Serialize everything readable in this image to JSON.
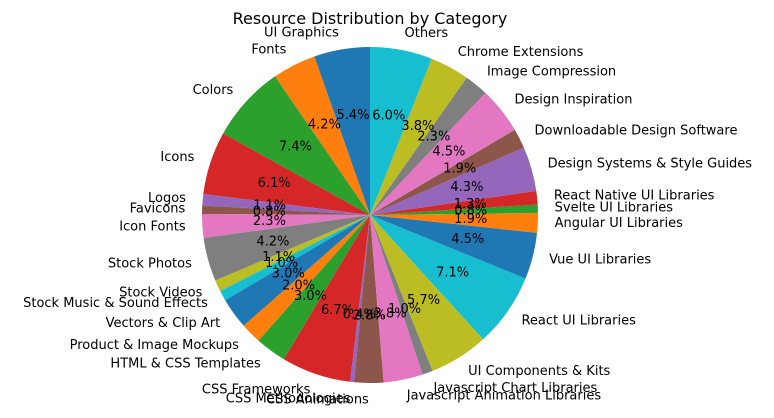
{
  "chart_data": {
    "type": "pie",
    "title": "Resource Distribution by Category",
    "start_angle_deg": 90,
    "direction": "counterclockwise",
    "legend": "none",
    "slices": [
      {
        "label": "UI Graphics",
        "value": 5.4,
        "pct_label": "5.4%",
        "color": "#1f77b4"
      },
      {
        "label": "Fonts",
        "value": 4.2,
        "pct_label": "4.2%",
        "color": "#ff7f0e"
      },
      {
        "label": "Colors",
        "value": 7.4,
        "pct_label": "7.4%",
        "color": "#2ca02c"
      },
      {
        "label": "Icons",
        "value": 6.1,
        "pct_label": "6.1%",
        "color": "#d62728"
      },
      {
        "label": "Logos",
        "value": 1.1,
        "pct_label": "1.1%",
        "color": "#9467bd"
      },
      {
        "label": "Favicons",
        "value": 0.8,
        "pct_label": "0.8%",
        "color": "#8c564b"
      },
      {
        "label": "Icon Fonts",
        "value": 2.3,
        "pct_label": "2.3%",
        "color": "#e377c2"
      },
      {
        "label": "Stock Photos",
        "value": 4.2,
        "pct_label": "4.2%",
        "color": "#7f7f7f"
      },
      {
        "label": "Stock Videos",
        "value": 1.1,
        "pct_label": "1.1%",
        "color": "#bcbd22"
      },
      {
        "label": "Stock Music & Sound Effects",
        "value": 1.0,
        "pct_label": "1.0%",
        "color": "#17becf"
      },
      {
        "label": "Vectors & Clip Art",
        "value": 3.0,
        "pct_label": "3.0%",
        "color": "#1f77b4"
      },
      {
        "label": "Product & Image Mockups",
        "value": 2.0,
        "pct_label": "2.0%",
        "color": "#ff7f0e"
      },
      {
        "label": "HTML & CSS Templates",
        "value": 3.0,
        "pct_label": "3.0%",
        "color": "#2ca02c"
      },
      {
        "label": "CSS Frameworks",
        "value": 6.7,
        "pct_label": "6.7%",
        "color": "#d62728"
      },
      {
        "label": "CSS Methodologies",
        "value": 0.4,
        "pct_label": "0.4%",
        "color": "#9467bd"
      },
      {
        "label": "CSS Animations",
        "value": 2.8,
        "pct_label": "2.8%",
        "color": "#8c564b"
      },
      {
        "label": "Javascript Animation Libraries",
        "value": 3.8,
        "pct_label": "3.8%",
        "color": "#e377c2"
      },
      {
        "label": "Javascript Chart Libraries",
        "value": 1.0,
        "pct_label": "1.0%",
        "color": "#7f7f7f"
      },
      {
        "label": "UI Components & Kits",
        "value": 5.7,
        "pct_label": "5.7%",
        "color": "#bcbd22"
      },
      {
        "label": "React UI Libraries",
        "value": 7.1,
        "pct_label": "7.1%",
        "color": "#17becf"
      },
      {
        "label": "Vue UI Libraries",
        "value": 4.5,
        "pct_label": "4.5%",
        "color": "#1f77b4"
      },
      {
        "label": "Angular UI Libraries",
        "value": 1.9,
        "pct_label": "1.9%",
        "color": "#ff7f0e"
      },
      {
        "label": "Svelte UI Libraries",
        "value": 0.8,
        "pct_label": "0.8%",
        "color": "#2ca02c"
      },
      {
        "label": "React Native UI Libraries",
        "value": 1.3,
        "pct_label": "1.3%",
        "color": "#d62728"
      },
      {
        "label": "Design Systems & Style Guides",
        "value": 4.3,
        "pct_label": "4.3%",
        "color": "#9467bd"
      },
      {
        "label": "Downloadable Design Software",
        "value": 1.9,
        "pct_label": "1.9%",
        "color": "#8c564b"
      },
      {
        "label": "Design Inspiration",
        "value": 4.5,
        "pct_label": "4.5%",
        "color": "#e377c2"
      },
      {
        "label": "Image Compression",
        "value": 2.3,
        "pct_label": "2.3%",
        "color": "#7f7f7f"
      },
      {
        "label": "Chrome Extensions",
        "value": 3.8,
        "pct_label": "3.8%",
        "color": "#bcbd22"
      },
      {
        "label": "Others",
        "value": 6.0,
        "pct_label": "6.0%",
        "color": "#17becf"
      }
    ]
  }
}
